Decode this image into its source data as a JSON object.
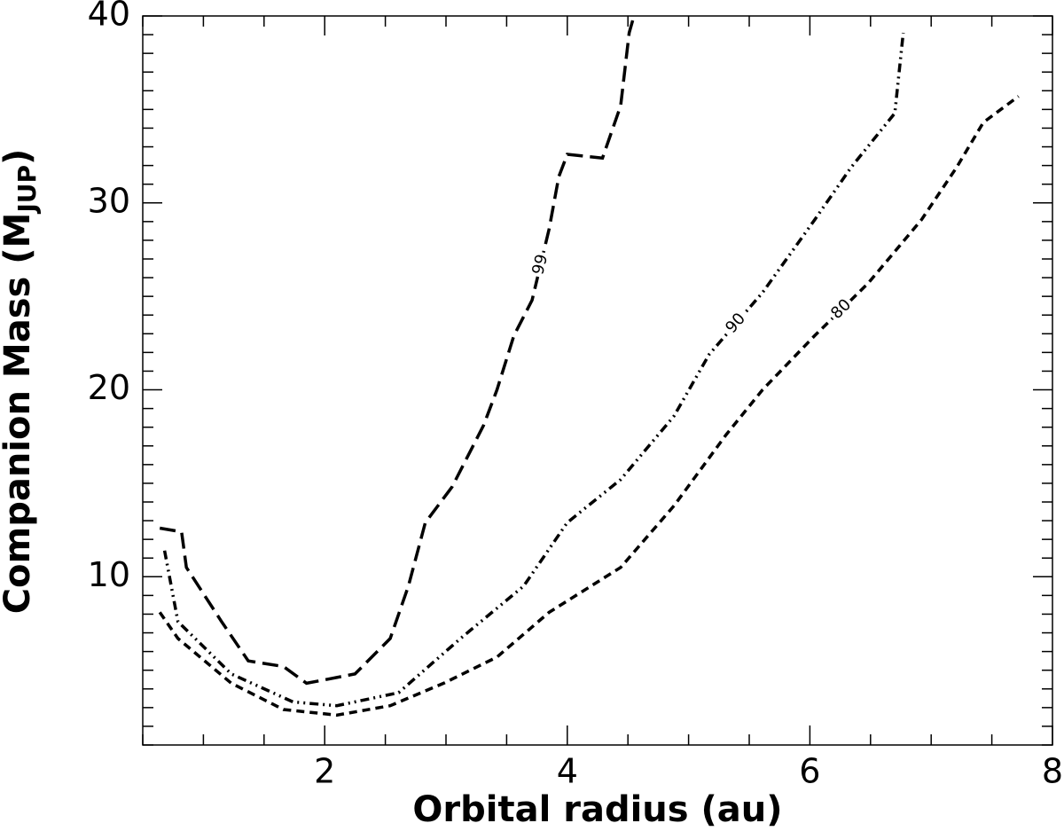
{
  "chart_data": {
    "type": "contour",
    "xlabel": "Orbital radius (au)",
    "ylabel": [
      "Companion Mass (M",
      "JUP",
      ")"
    ],
    "xlim": [
      0.5,
      8
    ],
    "ylim": [
      1,
      40
    ],
    "xticks": [
      2,
      4,
      6,
      8
    ],
    "yticks": [
      10,
      20,
      30,
      40
    ],
    "xminor": 0.5,
    "yminor": 1,
    "series": [
      {
        "name": "99",
        "color": "#000000",
        "linestyle": "long-dash",
        "x": [
          0.64,
          0.82,
          0.86,
          1.15,
          1.37,
          1.66,
          1.85,
          2.25,
          2.54,
          2.69,
          2.83,
          3.05,
          3.31,
          3.42,
          3.56,
          3.71,
          3.85,
          3.93,
          4.0,
          4.29,
          4.44,
          4.51,
          4.55
        ],
        "values": [
          12.6,
          12.4,
          10.5,
          7.6,
          5.5,
          5.2,
          4.3,
          4.8,
          6.7,
          9.5,
          12.9,
          14.8,
          18.1,
          20,
          22.9,
          24.8,
          28.6,
          31.4,
          32.6,
          32.4,
          35.2,
          39.1,
          40
        ]
      },
      {
        "name": "90",
        "color": "#000000",
        "linestyle": "dash-dot-dot",
        "x": [
          0.68,
          0.79,
          1.23,
          1.74,
          2.1,
          2.61,
          3.12,
          3.64,
          4.0,
          4.44,
          4.88,
          5.17,
          5.61,
          6.04,
          6.34,
          6.7,
          6.77
        ],
        "values": [
          11.4,
          7.6,
          4.8,
          3.3,
          3.1,
          3.8,
          6.7,
          9.5,
          12.9,
          15.2,
          18.6,
          21.9,
          25.2,
          29.1,
          31.9,
          34.8,
          39.1
        ]
      },
      {
        "name": "80",
        "color": "#000000",
        "linestyle": "short-dash",
        "x": [
          0.64,
          0.79,
          1.23,
          1.66,
          2.1,
          2.54,
          2.98,
          3.42,
          3.85,
          4.44,
          4.88,
          5.31,
          5.61,
          6.04,
          6.48,
          6.92,
          7.21,
          7.43,
          7.72
        ],
        "values": [
          8.1,
          6.7,
          4.3,
          2.9,
          2.6,
          3.1,
          4.3,
          5.7,
          8.1,
          10.5,
          13.8,
          17.6,
          20,
          22.9,
          25.7,
          29.1,
          31.9,
          34.3,
          35.7
        ]
      }
    ]
  }
}
